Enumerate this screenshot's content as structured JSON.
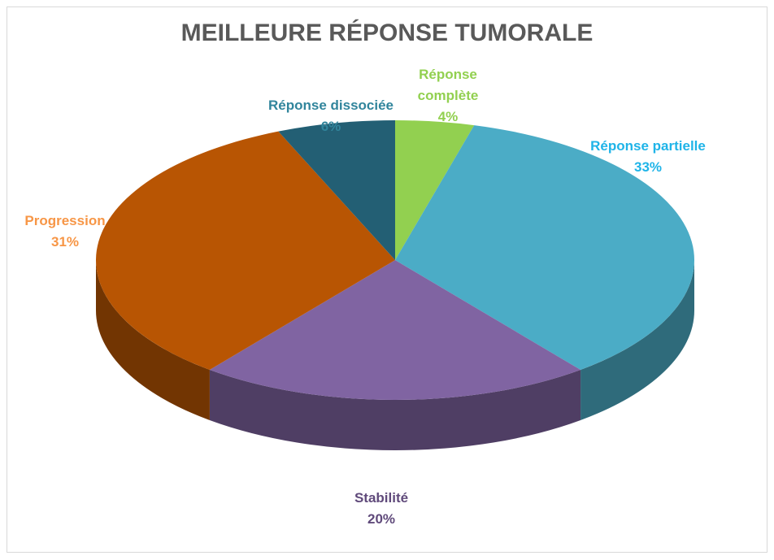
{
  "chart_data": {
    "type": "pie3d",
    "title": "MEILLEURE RÉPONSE TUMORALE",
    "categories": [
      "Réponse complète",
      "Réponse partielle",
      "Stabilité",
      "Progression",
      "Réponse dissociée"
    ],
    "values": [
      4,
      33,
      20,
      31,
      6
    ],
    "value_labels": [
      "4%",
      "33%",
      "20%",
      "31%",
      "6%"
    ],
    "colors": [
      "#92d050",
      "#4bacc6",
      "#8064a2",
      "#b85503",
      "#235f74"
    ],
    "label_colors": [
      "#92d050",
      "#1fb4e8",
      "#604a7b",
      "#f79646",
      "#31859c"
    ]
  }
}
